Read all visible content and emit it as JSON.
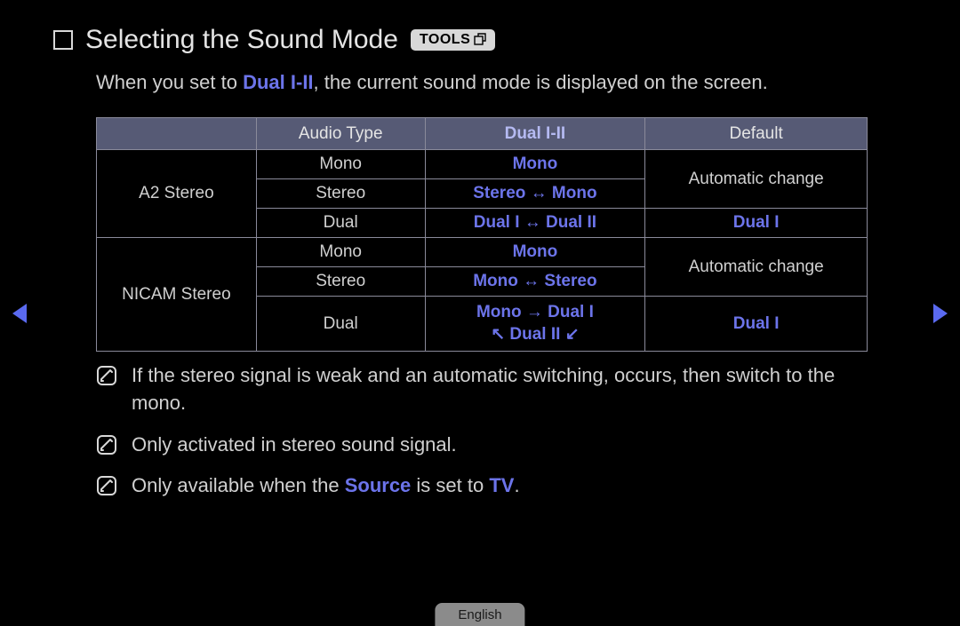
{
  "title": "Selecting the Sound Mode",
  "tools_label": "TOOLS",
  "intro_prefix": "When you set to ",
  "intro_highlight": "Dual I-II",
  "intro_suffix": ", the current sound mode is displayed on the screen.",
  "colors": {
    "highlight": "#6c74ea",
    "header_bg": "#565a75",
    "border": "#8a8a9a",
    "arrow": "#5a6af0",
    "text": "#d0d0d0",
    "background": "#000000"
  },
  "table": {
    "headers": [
      "",
      "Audio Type",
      "Dual I-II",
      "Default"
    ],
    "header_highlight_col": 2,
    "dual_highlight_col": 2,
    "groups": [
      {
        "label": "A2 Stereo",
        "rows": [
          {
            "audio_type": "Mono",
            "dual": "Mono",
            "default": "Automatic change",
            "default_rowspan": 2
          },
          {
            "audio_type": "Stereo",
            "dual": "Stereo ↔ Mono"
          },
          {
            "audio_type": "Dual",
            "dual": "Dual I ↔ Dual II",
            "default": "Dual I",
            "default_is_dual": true
          }
        ]
      },
      {
        "label": "NICAM Stereo",
        "rows": [
          {
            "audio_type": "Mono",
            "dual": "Mono",
            "default": "Automatic change",
            "default_rowspan": 2
          },
          {
            "audio_type": "Stereo",
            "dual": "Mono ↔ Stereo"
          },
          {
            "audio_type": "Dual",
            "dual_lines": [
              "Mono → Dual I",
              "↖ Dual II ↙"
            ],
            "default": "Dual I",
            "default_is_dual": true
          }
        ]
      }
    ]
  },
  "notes": [
    {
      "text": "If the stereo signal is weak and an automatic switching, occurs, then switch to the mono."
    },
    {
      "text": "Only activated in stereo sound signal."
    },
    {
      "segments": [
        "Only available when the ",
        {
          "hl": "Source"
        },
        " is set to ",
        {
          "hl": "TV"
        },
        "."
      ]
    }
  ],
  "language_tab": "English"
}
